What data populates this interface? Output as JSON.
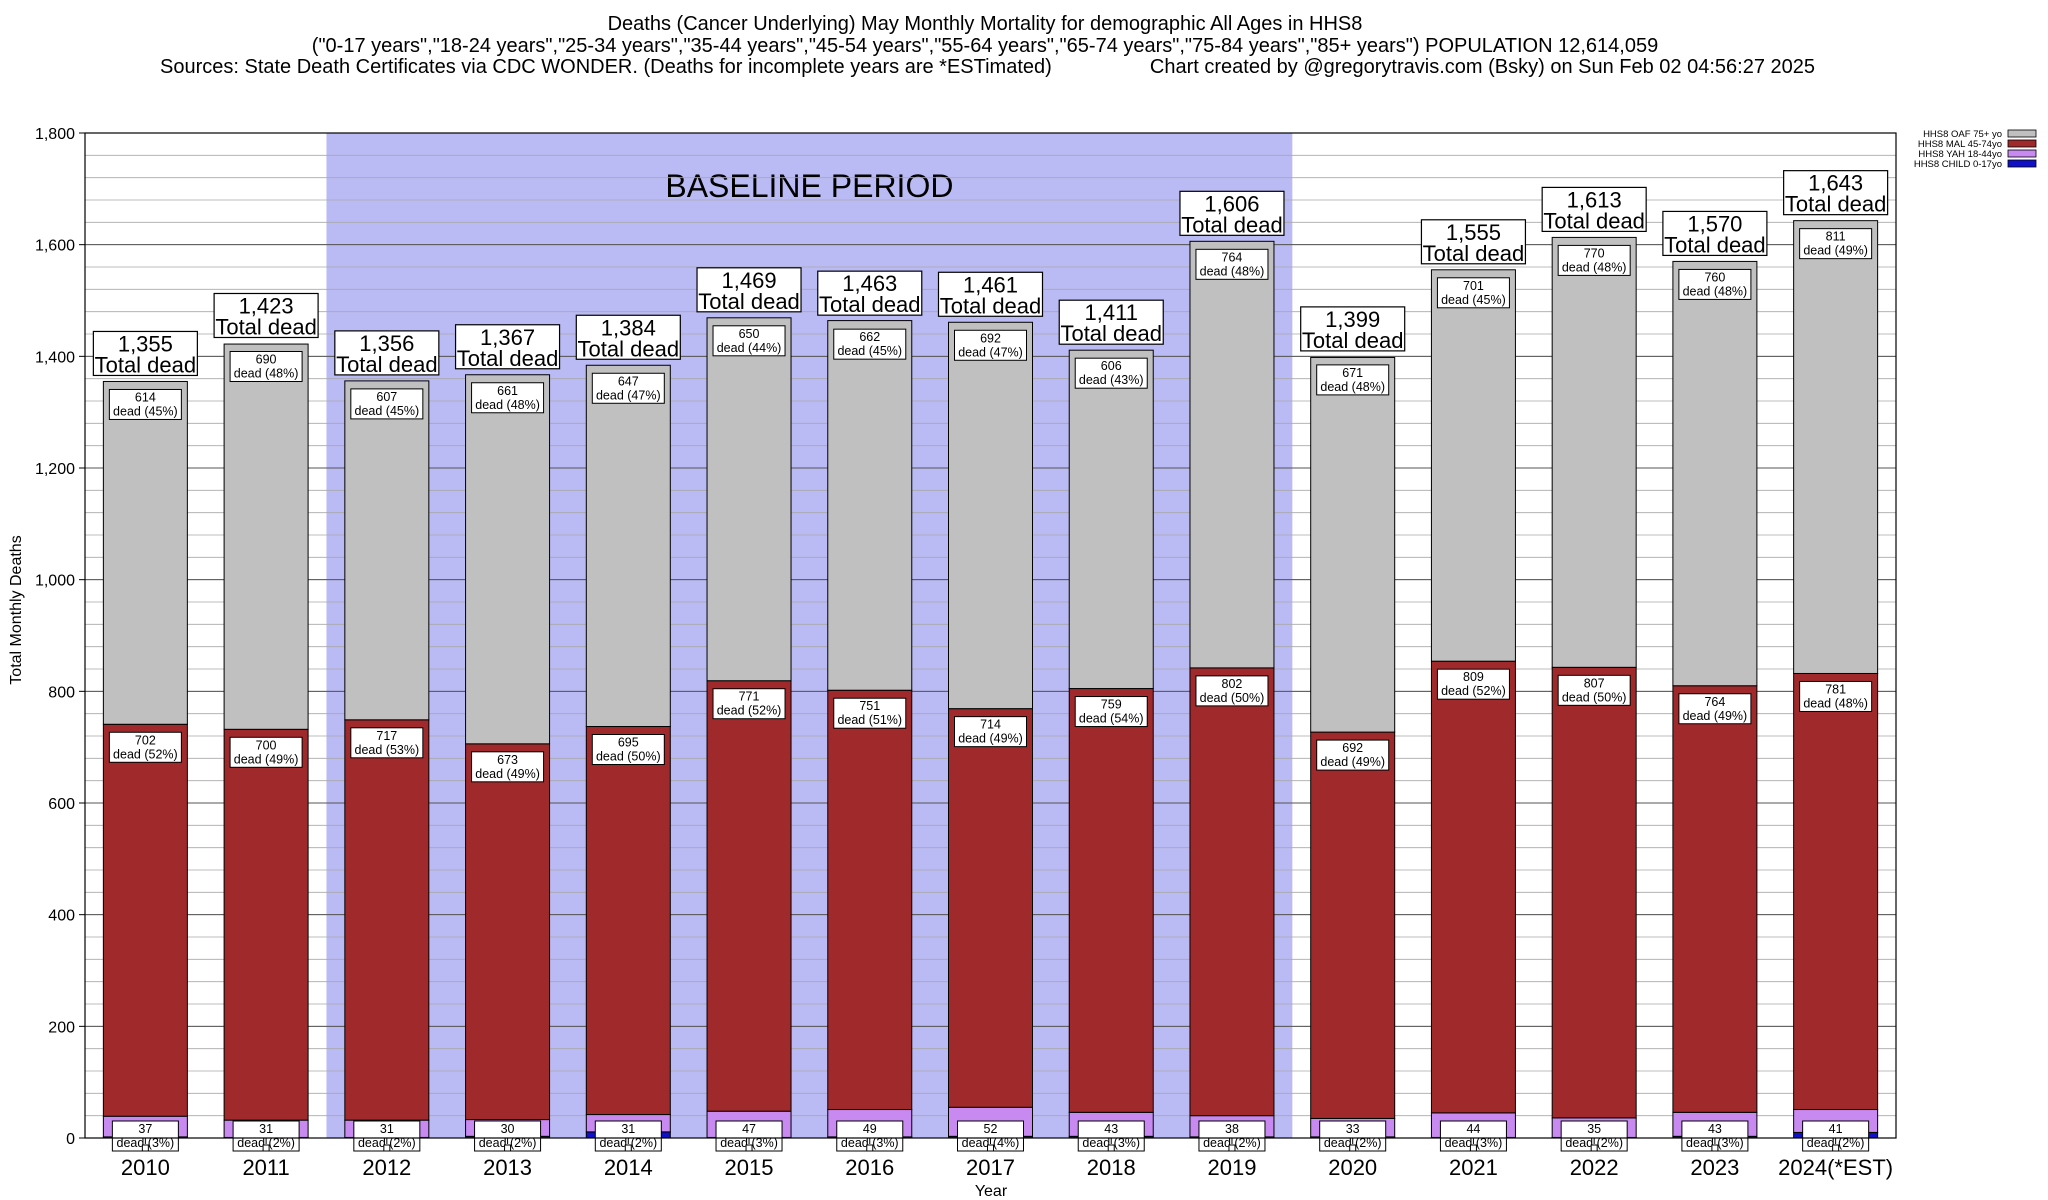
{
  "chart_data": {
    "type": "bar",
    "stacked": true,
    "title_lines": [
      "Deaths (Cancer Underlying) May Monthly Mortality for demographic All Ages in HHS8",
      "(\"0-17 years\",\"18-24 years\",\"25-34 years\",\"35-44 years\",\"45-54 years\",\"55-64 years\",\"65-74 years\",\"75-84 years\",\"85+ years\") POPULATION 12,614,059",
      "Sources: State Death Certificates via CDC WONDER. (Deaths for incomplete years are *ESTimated)",
      "Chart created by @gregorytravis.com (Bsky) on Sun Feb 02 04:56:27 2025"
    ],
    "xlabel": "Year",
    "ylabel": "Total Monthly Deaths",
    "ylim": [
      0,
      1800
    ],
    "yticks": [
      0,
      200,
      400,
      600,
      800,
      1000,
      1200,
      1400,
      1600,
      1800
    ],
    "ytick_labels": [
      "0",
      "200",
      "400",
      "600",
      "800",
      "1,000",
      "1,200",
      "1,400",
      "1,600",
      "1,800"
    ],
    "grid": true,
    "legend_position": "top-right",
    "categories": [
      "2010",
      "2011",
      "2012",
      "2013",
      "2014",
      "2015",
      "2016",
      "2017",
      "2018",
      "2019",
      "2020",
      "2021",
      "2022",
      "2023",
      "2024(*EST)"
    ],
    "baseline_period": {
      "label": "BASELINE PERIOD",
      "from": "2012",
      "to": "2019",
      "color": "#babaf5"
    },
    "series": [
      {
        "name": "HHS8 CHILD 0-17yo",
        "color": "#1010c8",
        "values": [
          2,
          1,
          1,
          3,
          11,
          1,
          2,
          3,
          3,
          2,
          2,
          1,
          1,
          3,
          10
        ]
      },
      {
        "name": "HHS8 YAH 18-44yo",
        "color": "#c88af0",
        "values": [
          37,
          31,
          31,
          30,
          31,
          47,
          49,
          52,
          43,
          38,
          33,
          44,
          35,
          43,
          41
        ],
        "pct_labels": [
          "dead (3%)",
          "dead (2%)",
          "dead (2%)",
          "dead (2%)",
          "dead (2%)",
          "dead (3%)",
          "dead (3%)",
          "dead (4%)",
          "dead (3%)",
          "dead (2%)",
          "dead (2%)",
          "dead (3%)",
          "dead (2%)",
          "dead (3%)",
          "dead (2%)"
        ]
      },
      {
        "name": "HHS8 MAL 45-74yo",
        "color": "#a0292b",
        "values": [
          702,
          700,
          717,
          673,
          695,
          771,
          751,
          714,
          759,
          802,
          692,
          809,
          807,
          764,
          781
        ],
        "pct_labels": [
          "dead (52%)",
          "dead (49%)",
          "dead (53%)",
          "dead (49%)",
          "dead (50%)",
          "dead (52%)",
          "dead (51%)",
          "dead (49%)",
          "dead (54%)",
          "dead (50%)",
          "dead (49%)",
          "dead (52%)",
          "dead (50%)",
          "dead (49%)",
          "dead (48%)"
        ]
      },
      {
        "name": "HHS8 OAF 75+ yo",
        "color": "#c0c0c0",
        "values": [
          614,
          690,
          607,
          661,
          647,
          650,
          662,
          692,
          606,
          764,
          671,
          701,
          770,
          760,
          811
        ],
        "pct_labels": [
          "dead (45%)",
          "dead (48%)",
          "dead (45%)",
          "dead (48%)",
          "dead (47%)",
          "dead (44%)",
          "dead (45%)",
          "dead (47%)",
          "dead (43%)",
          "dead (48%)",
          "dead (48%)",
          "dead (45%)",
          "dead (48%)",
          "dead (48%)",
          "dead (49%)"
        ]
      }
    ],
    "totals": [
      1355,
      1423,
      1356,
      1367,
      1384,
      1469,
      1463,
      1461,
      1411,
      1606,
      1399,
      1555,
      1613,
      1570,
      1643
    ],
    "total_labels": [
      "1,355",
      "1,423",
      "1,356",
      "1,367",
      "1,384",
      "1,469",
      "1,463",
      "1,461",
      "1,411",
      "1,606",
      "1,399",
      "1,555",
      "1,613",
      "1,570",
      "1,643"
    ],
    "total_suffix": "Total dead"
  }
}
